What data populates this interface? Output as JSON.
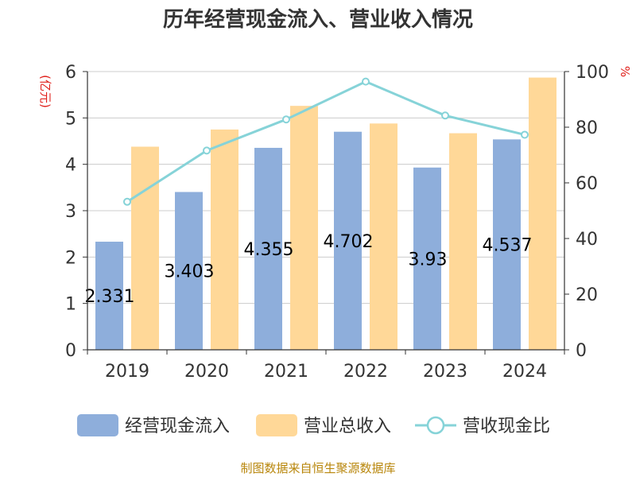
{
  "title": "历年经营现金流入、营业收入情况",
  "source": "制图数据来自恒生聚源数据库",
  "colors": {
    "series_a": "#8eaedb",
    "series_b": "#ffd898",
    "line": "#86d3d8",
    "unit": "#e0201b",
    "source": "#b8860b",
    "grid": "#cccccc",
    "axis": "#333333"
  },
  "chart_data": {
    "type": "bar",
    "categories": [
      "2019",
      "2020",
      "2021",
      "2022",
      "2023",
      "2024"
    ],
    "y_left": {
      "unit_label": "(亿元)",
      "ylim": [
        0,
        6
      ],
      "ticks": [
        0,
        1,
        2,
        3,
        4,
        5,
        6
      ]
    },
    "y_right": {
      "unit_label": "%",
      "ylim": [
        0,
        100
      ],
      "ticks": [
        0,
        20,
        40,
        60,
        80,
        100
      ]
    },
    "grid": true,
    "legend_position": "bottom",
    "series": [
      {
        "name": "经营现金流入",
        "type": "bar",
        "axis": "left",
        "values": [
          2.331,
          3.403,
          4.355,
          4.702,
          3.93,
          4.537
        ],
        "labels": [
          "2.331",
          "3.403",
          "4.355",
          "4.702",
          "3.93",
          "4.537"
        ]
      },
      {
        "name": "营业总收入",
        "type": "bar",
        "axis": "left",
        "values": [
          4.38,
          4.75,
          5.26,
          4.88,
          4.67,
          5.87
        ]
      },
      {
        "name": "营收现金比",
        "type": "line",
        "axis": "right",
        "values": [
          53.2,
          71.6,
          82.8,
          96.4,
          84.2,
          77.3
        ]
      }
    ]
  }
}
